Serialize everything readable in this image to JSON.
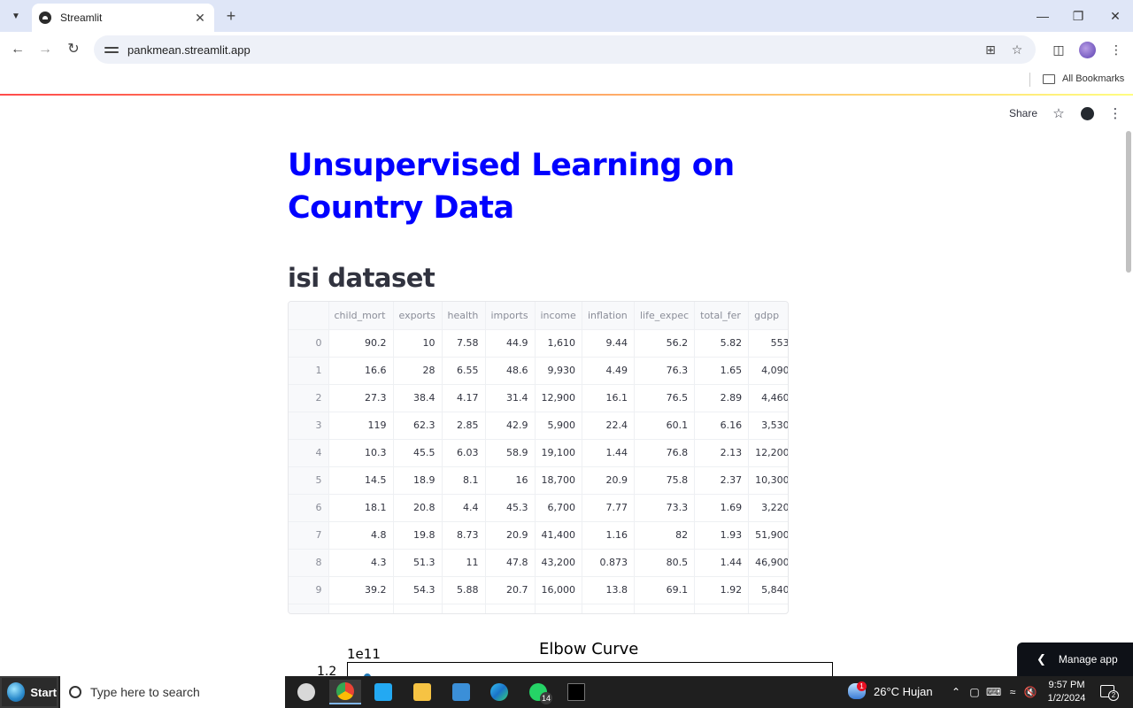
{
  "browser": {
    "tab_title": "Streamlit",
    "new_tab_symbol": "+",
    "url": "pankmean.streamlit.app",
    "bookmarks_label": "All Bookmarks",
    "icons": [
      "tab-search-icon",
      "streamlit-favicon-icon",
      "close-icon",
      "new-tab-icon",
      "minimize-icon",
      "restore-icon",
      "close-window-icon",
      "back-icon",
      "forward-icon",
      "reload-icon",
      "site-info-icon",
      "install-app-icon",
      "bookmark-star-icon",
      "side-panel-icon",
      "profile-avatar",
      "browser-menu-icon",
      "folder-icon"
    ]
  },
  "app": {
    "header": {
      "share_label": "Share"
    },
    "title": "Unsupervised Learning on Country Data",
    "subheader": "isi dataset",
    "dataframe": {
      "columns": [
        "",
        "child_mort",
        "exports",
        "health",
        "imports",
        "income",
        "inflation",
        "life_expec",
        "total_fer",
        "gdpp"
      ],
      "rows": [
        [
          "0",
          "90.2",
          "10",
          "7.58",
          "44.9",
          "1,610",
          "9.44",
          "56.2",
          "5.82",
          "553"
        ],
        [
          "1",
          "16.6",
          "28",
          "6.55",
          "48.6",
          "9,930",
          "4.49",
          "76.3",
          "1.65",
          "4,090"
        ],
        [
          "2",
          "27.3",
          "38.4",
          "4.17",
          "31.4",
          "12,900",
          "16.1",
          "76.5",
          "2.89",
          "4,460"
        ],
        [
          "3",
          "119",
          "62.3",
          "2.85",
          "42.9",
          "5,900",
          "22.4",
          "60.1",
          "6.16",
          "3,530"
        ],
        [
          "4",
          "10.3",
          "45.5",
          "6.03",
          "58.9",
          "19,100",
          "1.44",
          "76.8",
          "2.13",
          "12,200"
        ],
        [
          "5",
          "14.5",
          "18.9",
          "8.1",
          "16",
          "18,700",
          "20.9",
          "75.8",
          "2.37",
          "10,300"
        ],
        [
          "6",
          "18.1",
          "20.8",
          "4.4",
          "45.3",
          "6,700",
          "7.77",
          "73.3",
          "1.69",
          "3,220"
        ],
        [
          "7",
          "4.8",
          "19.8",
          "8.73",
          "20.9",
          "41,400",
          "1.16",
          "82",
          "1.93",
          "51,900"
        ],
        [
          "8",
          "4.3",
          "51.3",
          "11",
          "47.8",
          "43,200",
          "0.873",
          "80.5",
          "1.44",
          "46,900"
        ],
        [
          "9",
          "39.2",
          "54.3",
          "5.88",
          "20.7",
          "16,000",
          "13.8",
          "69.1",
          "1.92",
          "5,840"
        ]
      ]
    },
    "chart": {
      "title": "Elbow Curve",
      "offset_text": "1e11",
      "first_ytick": "1.2"
    },
    "manage_app_label": "Manage app"
  },
  "taskbar": {
    "start_label": "Start",
    "search_placeholder": "Type here to search",
    "whatsapp_badge": "14",
    "weather": "26°C  Hujan",
    "weather_badge": "1",
    "time": "9:57 PM",
    "date": "1/2/2024",
    "notification_count": "2",
    "colors": {
      "taskbar_bg": "#1f1f1f",
      "title_blue": "#0000ff",
      "manage_app_bg": "#0e1117"
    }
  }
}
